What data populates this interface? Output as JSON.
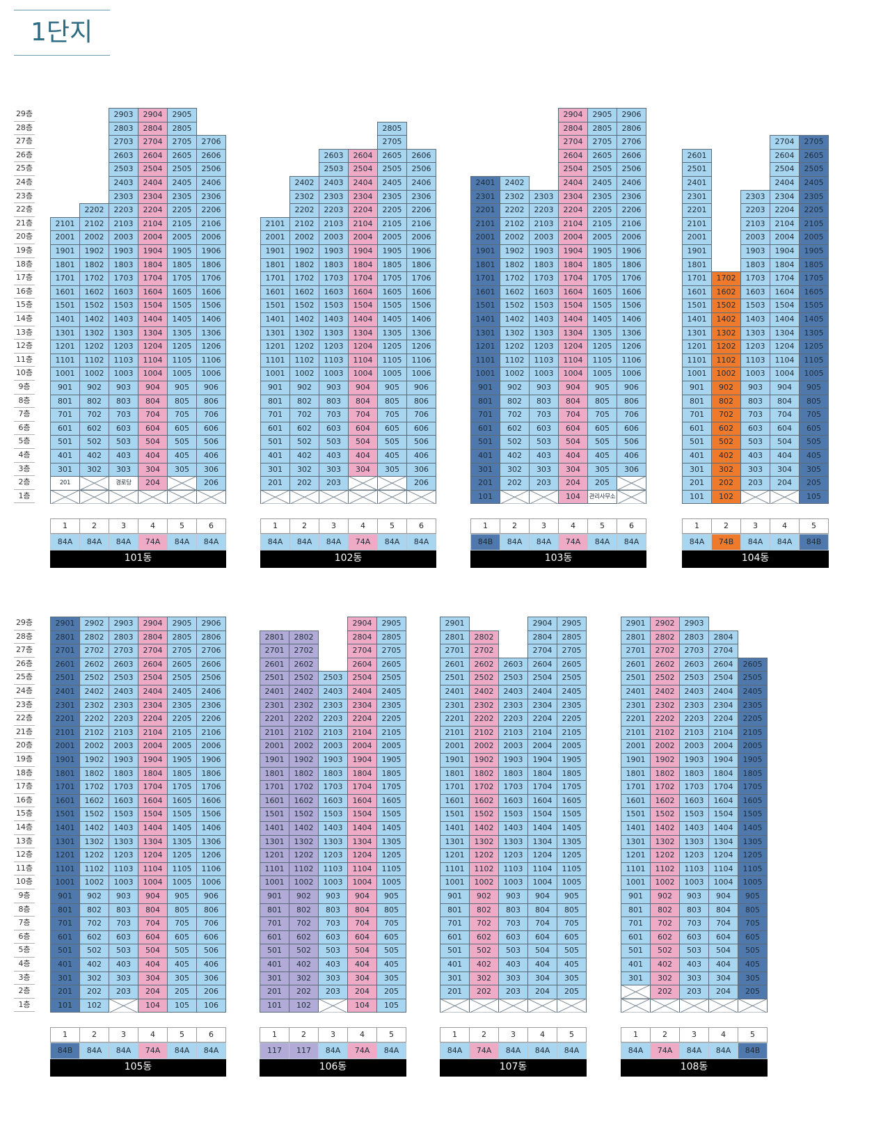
{
  "page": {
    "title": "1단지"
  },
  "colors": {
    "A84": "#a8d5ef",
    "B84": "#4f79ad",
    "A74": "#efaac6",
    "B74": "#ef7a2c",
    "U117": "#b2abd7",
    "empty": "#ffffff",
    "grid": "#596a78"
  },
  "floor_suffix": "층",
  "buildings": [
    {
      "name": "101동",
      "lines": [
        {
          "num": "1",
          "type": "84A",
          "range": [
            3,
            21
          ],
          "floor2": "201"
        },
        {
          "num": "2",
          "type": "84A",
          "range": [
            3,
            22
          ],
          "floor2": "X"
        },
        {
          "num": "3",
          "type": "84A",
          "range": [
            3,
            29
          ],
          "floor2": "경로당"
        },
        {
          "num": "4",
          "type": "74A",
          "range": [
            2,
            29
          ]
        },
        {
          "num": "5",
          "type": "84A",
          "range": [
            3,
            29
          ],
          "floor2": "X"
        },
        {
          "num": "6",
          "type": "84A",
          "range": [
            2,
            27
          ]
        }
      ]
    },
    {
      "name": "102동",
      "lines": [
        {
          "num": "1",
          "type": "84A",
          "range": [
            2,
            21
          ]
        },
        {
          "num": "2",
          "type": "84A",
          "range": [
            2,
            24
          ]
        },
        {
          "num": "3",
          "type": "84A",
          "range": [
            2,
            26
          ]
        },
        {
          "num": "4",
          "type": "74A",
          "range": [
            3,
            26
          ],
          "floor2": "X"
        },
        {
          "num": "5",
          "type": "84A",
          "range": [
            3,
            28
          ],
          "floor2": "X"
        },
        {
          "num": "6",
          "type": "84A",
          "range": [
            2,
            26
          ]
        }
      ]
    },
    {
      "name": "103동",
      "lines": [
        {
          "num": "1",
          "type": "84B",
          "range": [
            1,
            24
          ]
        },
        {
          "num": "2",
          "type": "84A",
          "range": [
            2,
            24
          ]
        },
        {
          "num": "3",
          "type": "84A",
          "range": [
            2,
            23
          ]
        },
        {
          "num": "4",
          "type": "74A",
          "range": [
            1,
            29
          ]
        },
        {
          "num": "5",
          "type": "84A",
          "range": [
            2,
            29
          ],
          "floor1": "관리사무소"
        },
        {
          "num": "6",
          "type": "84A",
          "range": [
            3,
            29
          ],
          "floor2": "X"
        }
      ]
    },
    {
      "name": "104동",
      "lines": [
        {
          "num": "1",
          "type": "84A",
          "range": [
            1,
            26
          ]
        },
        {
          "num": "2",
          "type": "74B",
          "range": [
            1,
            17
          ]
        },
        {
          "num": "3",
          "type": "84A",
          "range": [
            2,
            23
          ]
        },
        {
          "num": "4",
          "type": "84A",
          "range": [
            2,
            27
          ]
        },
        {
          "num": "5",
          "type": "84B",
          "range": [
            1,
            27
          ]
        }
      ]
    },
    {
      "name": "105동",
      "lines": [
        {
          "num": "1",
          "type": "84B",
          "range": [
            1,
            29
          ]
        },
        {
          "num": "2",
          "type": "84A",
          "range": [
            1,
            29
          ]
        },
        {
          "num": "3",
          "type": "84A",
          "range": [
            2,
            29
          ]
        },
        {
          "num": "4",
          "type": "74A",
          "range": [
            1,
            29
          ]
        },
        {
          "num": "5",
          "type": "84A",
          "range": [
            1,
            29
          ]
        },
        {
          "num": "6",
          "type": "84A",
          "range": [
            1,
            29
          ]
        }
      ]
    },
    {
      "name": "106동",
      "lines": [
        {
          "num": "1",
          "type": "117",
          "range": [
            1,
            28
          ]
        },
        {
          "num": "2",
          "type": "117",
          "range": [
            1,
            28
          ]
        },
        {
          "num": "3",
          "type": "84A",
          "range": [
            2,
            25
          ]
        },
        {
          "num": "4",
          "type": "74A",
          "range": [
            1,
            29
          ]
        },
        {
          "num": "5",
          "type": "84A",
          "range": [
            1,
            29
          ]
        }
      ]
    },
    {
      "name": "107동",
      "lines": [
        {
          "num": "1",
          "type": "84A",
          "range": [
            2,
            29
          ]
        },
        {
          "num": "2",
          "type": "74A",
          "range": [
            2,
            28
          ]
        },
        {
          "num": "3",
          "type": "84A",
          "range": [
            2,
            26
          ]
        },
        {
          "num": "4",
          "type": "84A",
          "range": [
            2,
            29
          ]
        },
        {
          "num": "5",
          "type": "84A",
          "range": [
            2,
            29
          ]
        }
      ]
    },
    {
      "name": "108동",
      "lines": [
        {
          "num": "1",
          "type": "84A",
          "range": [
            3,
            29
          ],
          "floor2": "X"
        },
        {
          "num": "2",
          "type": "74A",
          "range": [
            2,
            29
          ]
        },
        {
          "num": "3",
          "type": "84A",
          "range": [
            2,
            29
          ]
        },
        {
          "num": "4",
          "type": "84A",
          "range": [
            2,
            28
          ]
        },
        {
          "num": "5",
          "type": "84B",
          "range": [
            2,
            26
          ]
        }
      ]
    }
  ]
}
